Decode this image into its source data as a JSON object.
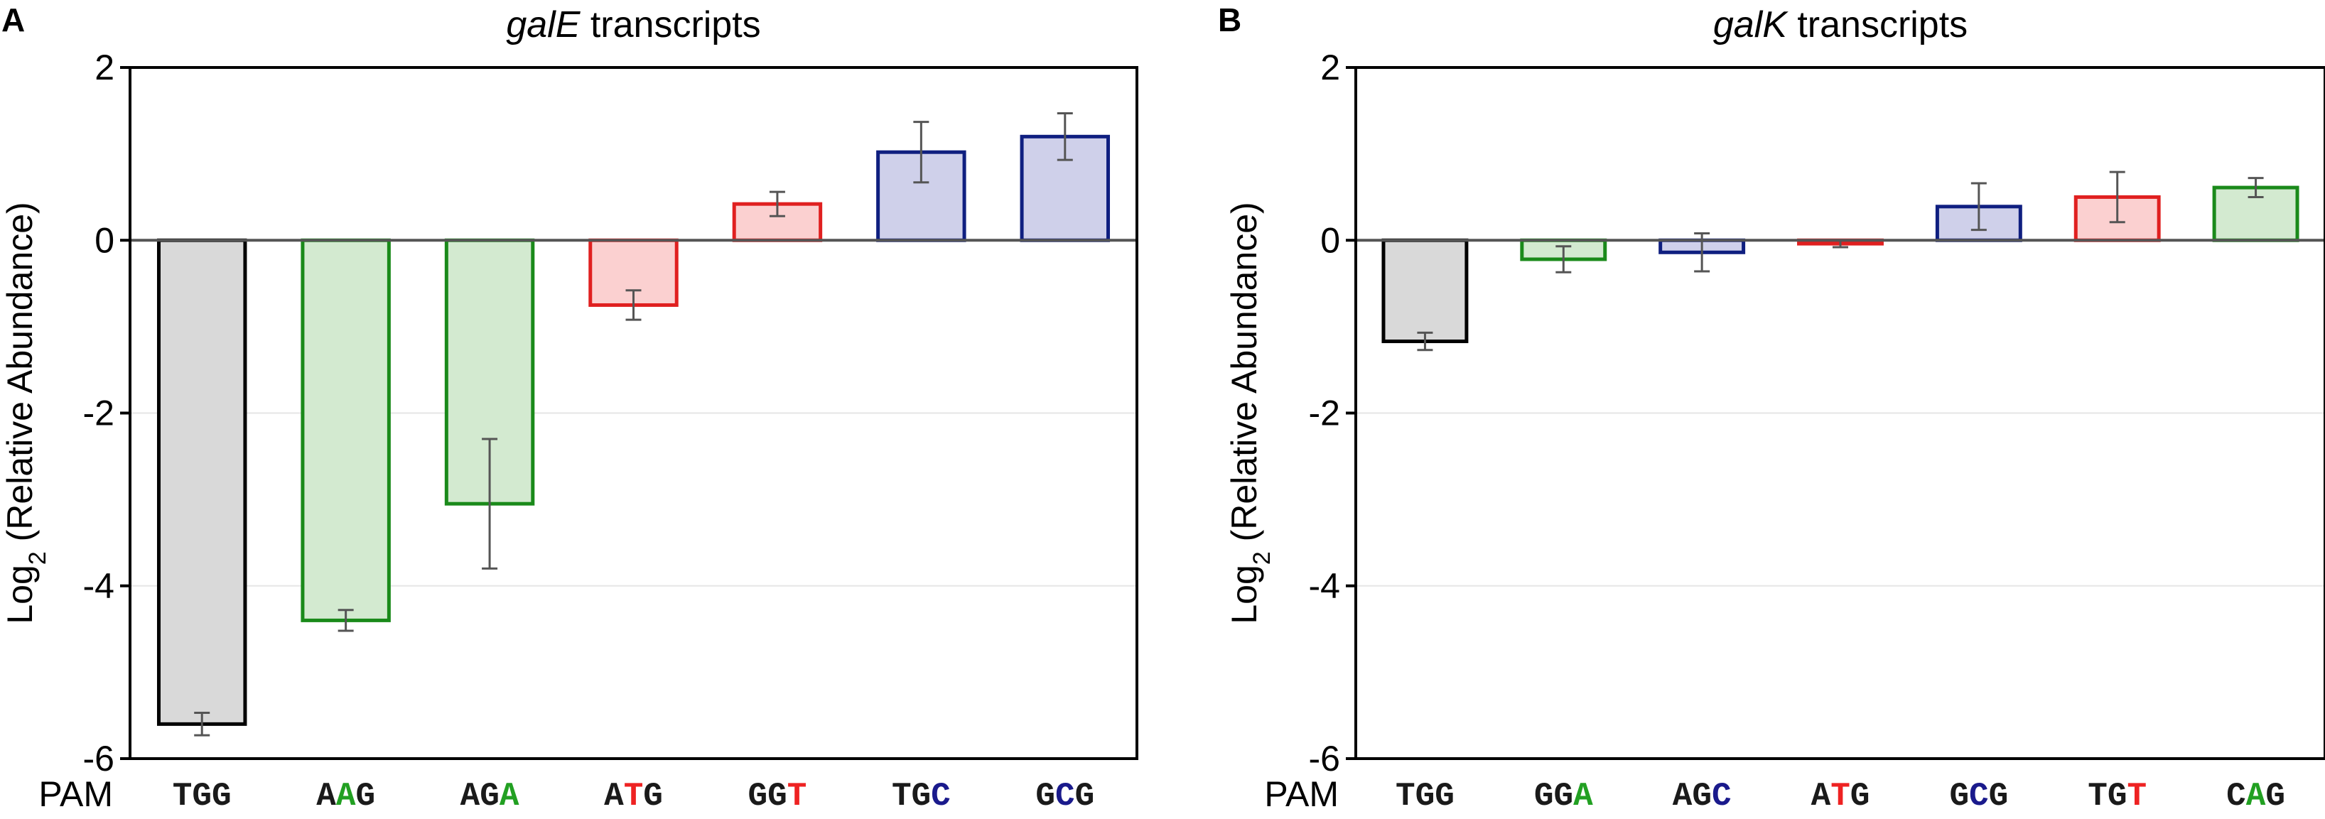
{
  "figure": {
    "panels": [
      "A",
      "B"
    ],
    "pam_axis_label": "PAM",
    "ylabel_main": "Log",
    "ylabel_sub": "2",
    "ylabel_rest": " (Relative Abundance)"
  },
  "colors": {
    "axis": "#000000",
    "zero_line": "#555555",
    "gridline": "#e6e6e6",
    "error_bar": "#555555",
    "pam_base": "#1a1a1a",
    "gray_fill": "#d9d9d9",
    "gray_stroke": "#000000",
    "green_fill": "#d3ead0",
    "green_stroke": "#1a8a1a",
    "red_fill": "#fbd0d0",
    "red_stroke": "#e02020",
    "blue_fill": "#cfd0ea",
    "blue_stroke": "#0f1f80",
    "green_text": "#22a022",
    "red_text": "#ee2222",
    "blue_text": "#1a1a8c"
  },
  "chart_data": [
    {
      "panel": "A",
      "type": "bar",
      "title_italic": "galE",
      "title_rest": " transcripts",
      "xlabel": "PAM",
      "ylabel": "Log2 (Relative Abundance)",
      "ylim": [
        -6,
        2
      ],
      "yticks": [
        2,
        0,
        -2,
        -4,
        -6
      ],
      "gridlines": [
        -2,
        -4
      ],
      "categories": [
        "TGG",
        "AAG",
        "AGA",
        "ATG",
        "GGT",
        "TGC",
        "GCG"
      ],
      "category_highlight": [
        null,
        1,
        2,
        1,
        2,
        2,
        1
      ],
      "values": [
        -5.6,
        -4.4,
        -3.05,
        -0.75,
        0.42,
        1.02,
        1.2
      ],
      "errors": [
        0.13,
        0.12,
        0.75,
        0.17,
        0.14,
        0.35,
        0.27
      ],
      "colors": [
        "gray",
        "green",
        "green",
        "red",
        "red",
        "blue",
        "blue"
      ]
    },
    {
      "panel": "B",
      "type": "bar",
      "title_italic": "galK",
      "title_rest": " transcripts",
      "xlabel": "PAM",
      "ylabel": "Log2 (Relative Abundance)",
      "ylim": [
        -6,
        2
      ],
      "yticks": [
        2,
        0,
        -2,
        -4,
        -6
      ],
      "gridlines": [
        -2,
        -4
      ],
      "categories": [
        "TGG",
        "GGA",
        "AGC",
        "ATG",
        "GCG",
        "TGT",
        "CAG"
      ],
      "category_highlight": [
        null,
        2,
        2,
        1,
        1,
        2,
        1
      ],
      "values": [
        -1.17,
        -0.22,
        -0.14,
        -0.04,
        0.39,
        0.5,
        0.61
      ],
      "errors": [
        0.1,
        0.15,
        0.22,
        0.04,
        0.27,
        0.29,
        0.11
      ],
      "colors": [
        "gray",
        "green",
        "blue",
        "red",
        "blue",
        "red",
        "green"
      ]
    }
  ]
}
